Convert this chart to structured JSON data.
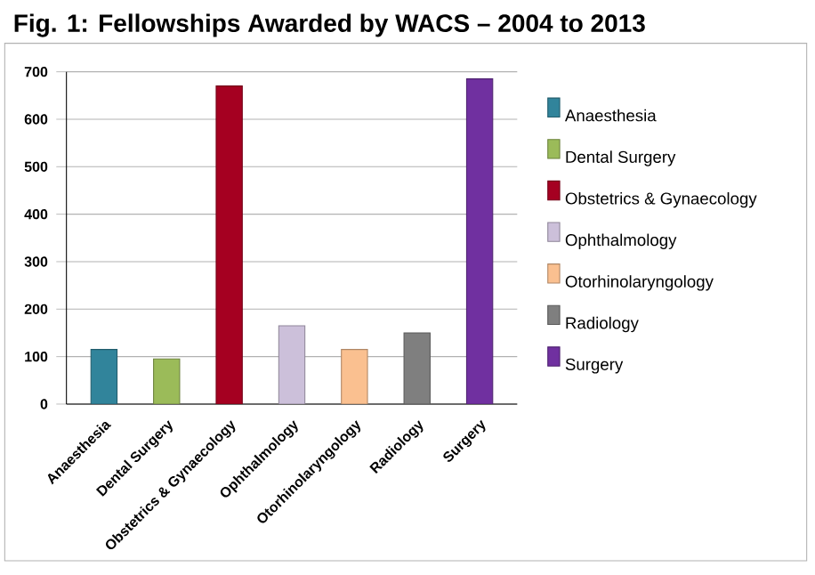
{
  "chart_data": {
    "type": "bar",
    "title": "Fig. 1: Fellowships Awarded by WACS – 2004 to 2013",
    "categories": [
      "Anaesthesia",
      "Dental Surgery",
      "Obstetrics & Gynaecology",
      "Ophthalmology",
      "Otorhinolaryngology",
      "Radiology",
      "Surgery"
    ],
    "series": [
      {
        "name": "Anaesthesia",
        "color": "#31849b",
        "values": [
          115,
          null,
          null,
          null,
          null,
          null,
          null
        ]
      },
      {
        "name": "Dental Surgery",
        "color": "#9bbb59",
        "values": [
          null,
          95,
          null,
          null,
          null,
          null,
          null
        ]
      },
      {
        "name": "Obstetrics & Gynaecology",
        "color": "#a50021",
        "values": [
          null,
          null,
          670,
          null,
          null,
          null,
          null
        ]
      },
      {
        "name": "Ophthalmology",
        "color": "#ccc0da",
        "values": [
          null,
          null,
          null,
          165,
          null,
          null,
          null
        ]
      },
      {
        "name": "Otorhinolaryngology",
        "color": "#fac090",
        "values": [
          null,
          null,
          null,
          null,
          115,
          null,
          null
        ]
      },
      {
        "name": "Radiology",
        "color": "#7f7f7f",
        "values": [
          null,
          null,
          null,
          null,
          null,
          150,
          null
        ]
      },
      {
        "name": "Surgery",
        "color": "#7030a0",
        "values": [
          null,
          null,
          null,
          null,
          null,
          null,
          685
        ]
      }
    ],
    "ylim": [
      0,
      700
    ],
    "yticks": [
      0,
      100,
      200,
      300,
      400,
      500,
      600,
      700
    ],
    "grid": "y",
    "legend": "right"
  }
}
